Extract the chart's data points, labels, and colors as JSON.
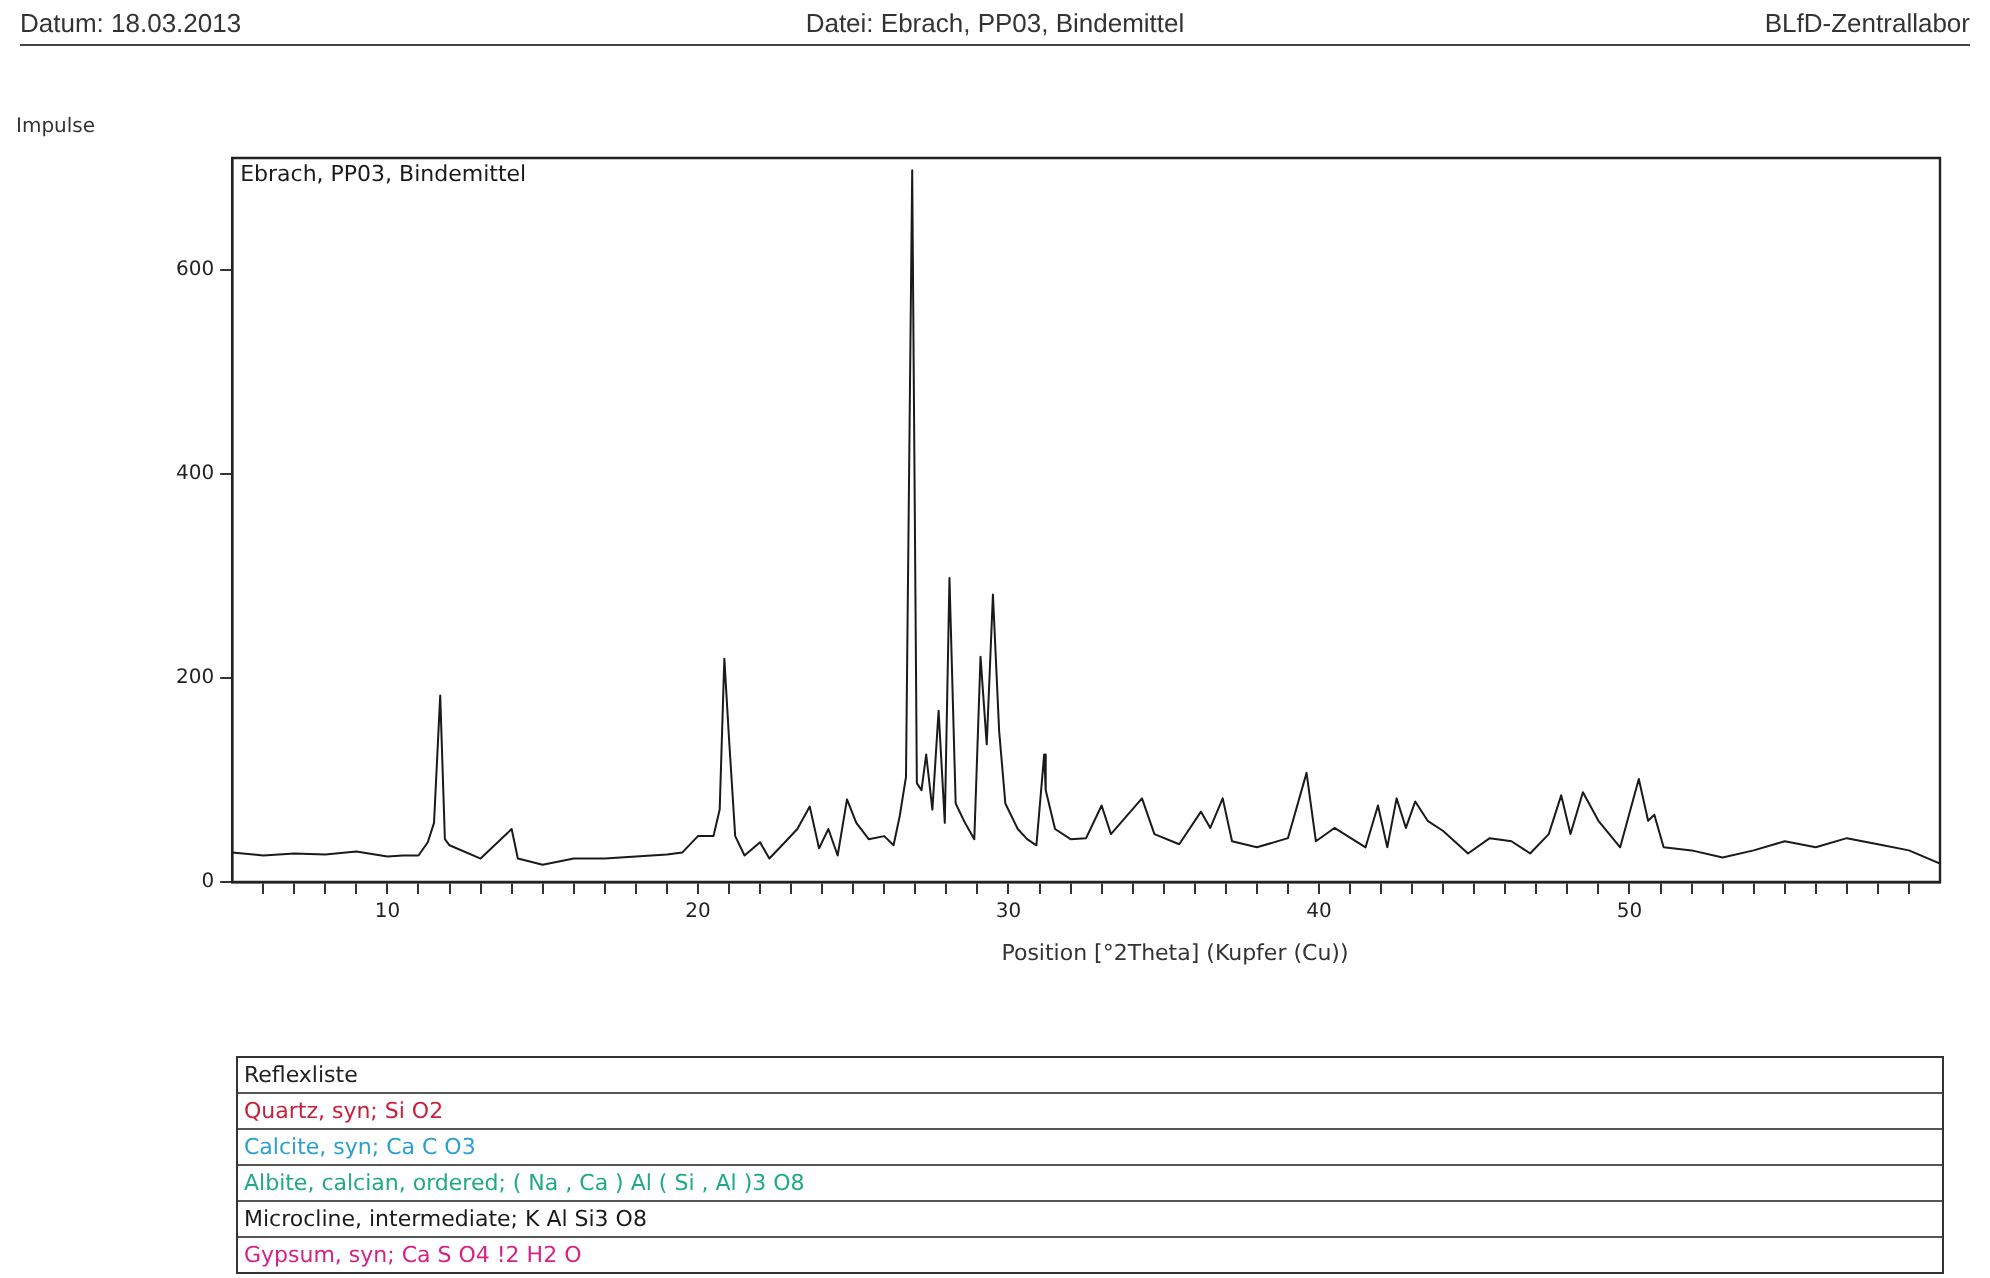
{
  "chart_data": [
    {
      "type": "line",
      "title": "Datei: Ebrach, PP03, Bindemittel",
      "annotations": [
        "Datum: 18.03.2013",
        "BLfD-Zentrallabor"
      ],
      "xlabel": "Position [°2Theta] (Kupfer (Cu))",
      "ylabel": "Impulse",
      "marker": "none",
      "grid": false,
      "legend": false,
      "xlim": [
        5,
        60
      ],
      "ylim": [
        0,
        710
      ],
      "xticks": [
        {
          "value": 6,
          "label": null
        },
        {
          "value": 7,
          "label": null
        },
        {
          "value": 8,
          "label": null
        },
        {
          "value": 9,
          "label": null
        },
        10,
        {
          "value": 11,
          "label": null
        },
        {
          "value": 12,
          "label": null
        },
        {
          "value": 13,
          "label": null
        },
        {
          "value": 14,
          "label": null
        },
        {
          "value": 15,
          "label": null
        },
        {
          "value": 16,
          "label": null
        },
        {
          "value": 17,
          "label": null
        },
        {
          "value": 18,
          "label": null
        },
        {
          "value": 19,
          "label": null
        },
        20,
        {
          "value": 21,
          "label": null
        },
        {
          "value": 22,
          "label": null
        },
        {
          "value": 23,
          "label": null
        },
        {
          "value": 24,
          "label": null
        },
        {
          "value": 25,
          "label": null
        },
        {
          "value": 26,
          "label": null
        },
        {
          "value": 27,
          "label": null
        },
        {
          "value": 28,
          "label": null
        },
        {
          "value": 29,
          "label": null
        },
        30,
        {
          "value": 31,
          "label": null
        },
        {
          "value": 32,
          "label": null
        },
        {
          "value": 33,
          "label": null
        },
        {
          "value": 34,
          "label": null
        },
        {
          "value": 35,
          "label": null
        },
        {
          "value": 36,
          "label": null
        },
        {
          "value": 37,
          "label": null
        },
        {
          "value": 38,
          "label": null
        },
        {
          "value": 39,
          "label": null
        },
        40,
        {
          "value": 41,
          "label": null
        },
        {
          "value": 42,
          "label": null
        },
        {
          "value": 43,
          "label": null
        },
        {
          "value": 44,
          "label": null
        },
        {
          "value": 45,
          "label": null
        },
        {
          "value": 46,
          "label": null
        },
        {
          "value": 47,
          "label": null
        },
        {
          "value": 48,
          "label": null
        },
        {
          "value": 49,
          "label": null
        },
        50,
        {
          "value": 51,
          "label": null
        },
        {
          "value": 52,
          "label": null
        },
        {
          "value": 53,
          "label": null
        },
        {
          "value": 54,
          "label": null
        },
        {
          "value": 55,
          "label": null
        },
        {
          "value": 56,
          "label": null
        },
        {
          "value": 57,
          "label": null
        },
        {
          "value": 58,
          "label": null
        },
        {
          "value": 59,
          "label": null
        }
      ],
      "yticks": [
        0,
        200,
        400,
        600
      ],
      "series": [
        {
          "name": "Ebrach, PP03, Bindemittel",
          "color": "#1a1a1a",
          "x": [
            5,
            6,
            7,
            8,
            9,
            10,
            10.5,
            11,
            11.3,
            11.5,
            11.7,
            11.85,
            12,
            13,
            14,
            14.2,
            15,
            16,
            17,
            18,
            19,
            19.5,
            20,
            20.5,
            20.7,
            20.85,
            21,
            21.2,
            21.5,
            22,
            22.3,
            22.8,
            23.2,
            23.6,
            23.9,
            24.2,
            24.5,
            24.8,
            25.1,
            25.5,
            26,
            26.3,
            26.5,
            26.7,
            26.9,
            27.05,
            27.2,
            27.35,
            27.55,
            27.75,
            27.95,
            28.1,
            28.3,
            28.6,
            28.9,
            29.1,
            29.3,
            29.5,
            29.7,
            29.9,
            30.3,
            30.6,
            30.9,
            31.15,
            31.2,
            31.5,
            32,
            32.5,
            33,
            33.3,
            34.3,
            34.7,
            35.5,
            36.2,
            36.5,
            36.9,
            37.2,
            38,
            39,
            39.6,
            39.9,
            40.5,
            41.5,
            41.9,
            42.2,
            42.5,
            42.8,
            43.1,
            43.5,
            44,
            44.8,
            45.5,
            46.2,
            46.8,
            47.4,
            47.8,
            48.1,
            48.5,
            49,
            49.7,
            50.3,
            50.6,
            50.8,
            51.1,
            52,
            53,
            54,
            55,
            56,
            57,
            58,
            59,
            60
          ],
          "values": [
            29,
            26,
            28,
            27,
            30,
            25,
            26,
            26,
            39,
            58,
            183,
            42,
            36,
            23,
            52,
            23,
            17,
            23,
            23,
            25,
            27,
            29,
            45,
            45,
            71,
            219,
            141,
            45,
            26,
            39,
            23,
            39,
            52,
            74,
            33,
            52,
            26,
            81,
            58,
            42,
            45,
            36,
            65,
            103,
            698,
            97,
            90,
            125,
            71,
            168,
            58,
            298,
            77,
            58,
            42,
            221,
            135,
            282,
            148,
            77,
            52,
            42,
            36,
            125,
            90,
            52,
            42,
            43,
            75,
            47,
            82,
            47,
            37,
            69,
            53,
            82,
            40,
            34,
            43,
            107,
            40,
            53,
            34,
            75,
            34,
            82,
            53,
            79,
            60,
            50,
            28,
            43,
            40,
            28,
            47,
            85,
            47,
            88,
            60,
            34,
            101,
            60,
            66,
            34,
            31,
            24,
            31,
            40,
            34,
            43,
            37,
            31,
            18
          ]
        }
      ]
    },
    {
      "type": "other",
      "title": "Reflexliste",
      "annotations": [
        "Quartz, syn; Si O2",
        "Calcite, syn; Ca C O3",
        "Albite, calcian, ordered; ( Na , Ca ) Al ( Si , Al )3 O8",
        "Microcline, intermediate; K Al Si3 O8",
        "Gypsum, syn; Ca S O4 !2 H2 O"
      ]
    }
  ]
}
